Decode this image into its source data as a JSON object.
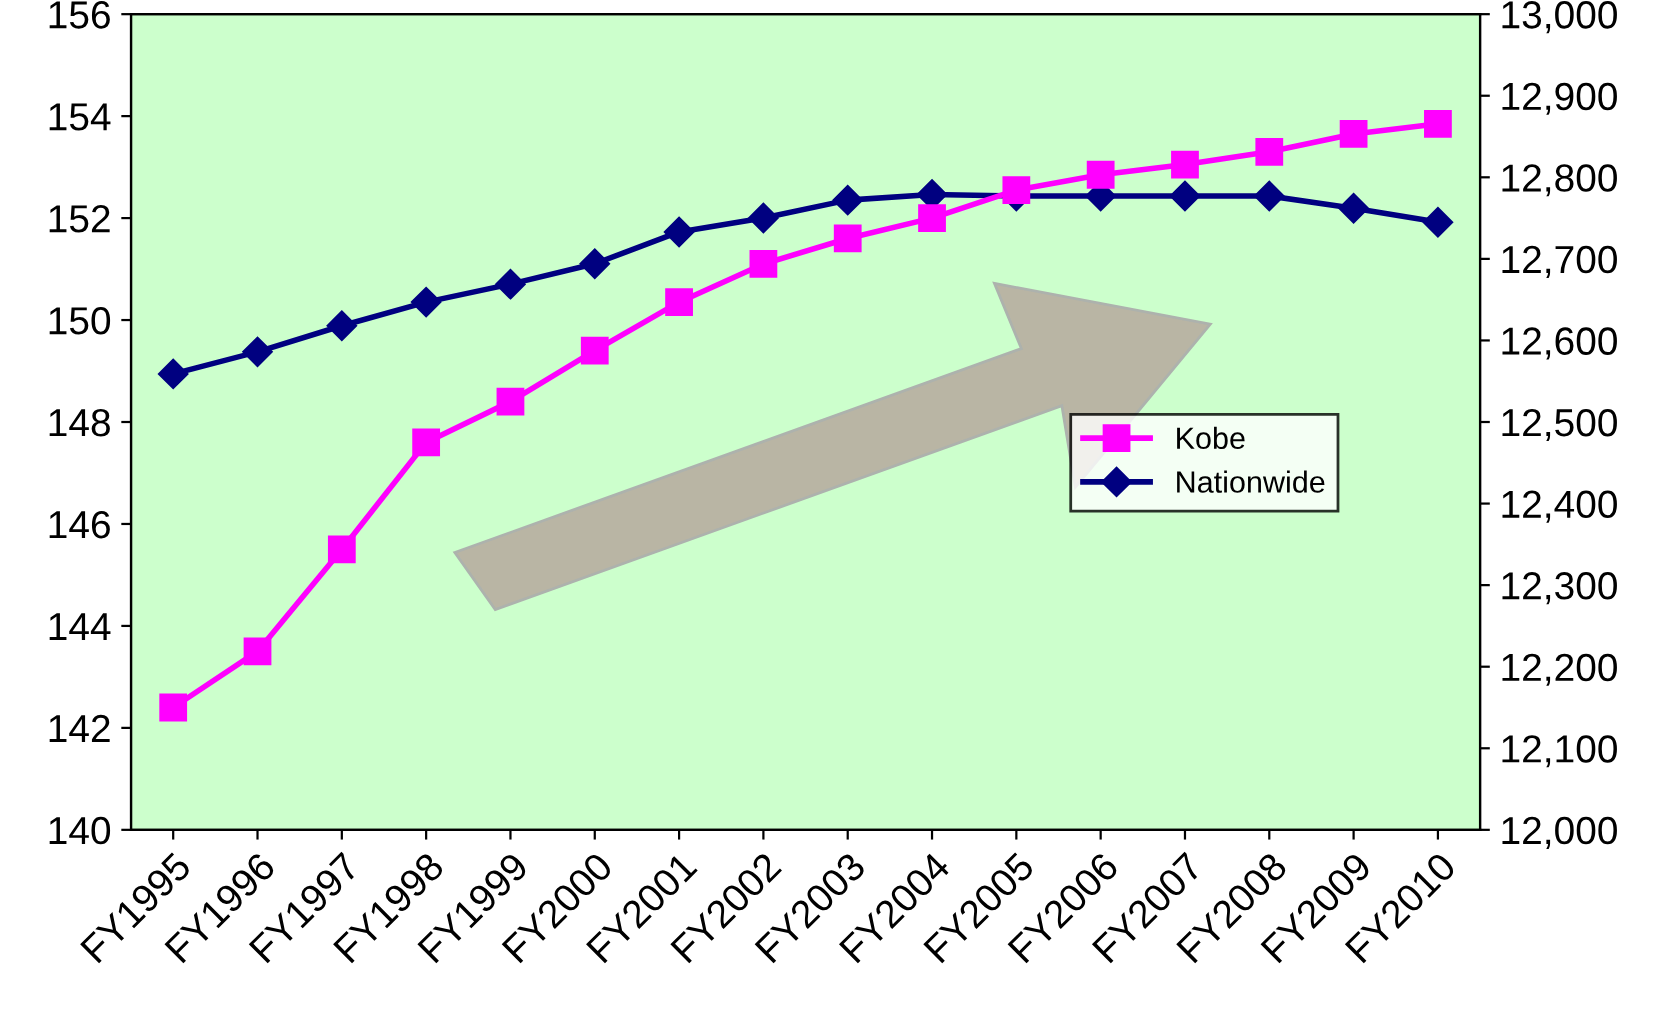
{
  "chart_data": {
    "type": "line",
    "categories": [
      "FY1995",
      "FY1996",
      "FY1997",
      "FY1998",
      "FY1999",
      "FY2000",
      "FY2001",
      "FY2002",
      "FY2003",
      "FY2004",
      "FY2005",
      "FY2006",
      "FY2007",
      "FY2008",
      "FY2009",
      "FY2010"
    ],
    "series": [
      {
        "name": "Kobe",
        "color": "#ff00ff",
        "marker": "square",
        "values": [
          142.4,
          143.5,
          145.5,
          147.6,
          148.4,
          149.4,
          150.35,
          151.1,
          151.6,
          152.0,
          152.55,
          152.85,
          153.05,
          153.3,
          153.65,
          153.85
        ]
      },
      {
        "name": "Nationwide",
        "color": "#000080",
        "marker": "diamond",
        "axis": "y2",
        "values": [
          12559,
          12586,
          12618,
          12647,
          12669,
          12694,
          12733,
          12750,
          12772,
          12779,
          12777,
          12777,
          12777,
          12777,
          12762,
          12745
        ]
      }
    ],
    "ylim": [
      140,
      156
    ],
    "yticks": [
      140,
      142,
      144,
      146,
      148,
      150,
      152,
      154,
      156
    ],
    "y2lim": [
      12000,
      13000
    ],
    "y2ticks": [
      {
        "value": 12000,
        "label": "12,000"
      },
      {
        "value": 12100,
        "label": "12,100"
      },
      {
        "value": 12200,
        "label": "12,200"
      },
      {
        "value": 12300,
        "label": "12,300"
      },
      {
        "value": 12400,
        "label": "12,400"
      },
      {
        "value": 12500,
        "label": "12,500"
      },
      {
        "value": 12600,
        "label": "12,600"
      },
      {
        "value": 12700,
        "label": "12,700"
      },
      {
        "value": 12800,
        "label": "12,800"
      },
      {
        "value": 12900,
        "label": "12,900"
      },
      {
        "value": 13000,
        "label": "13,000"
      }
    ],
    "grid": false,
    "legend": "right",
    "line_style": "solid"
  }
}
